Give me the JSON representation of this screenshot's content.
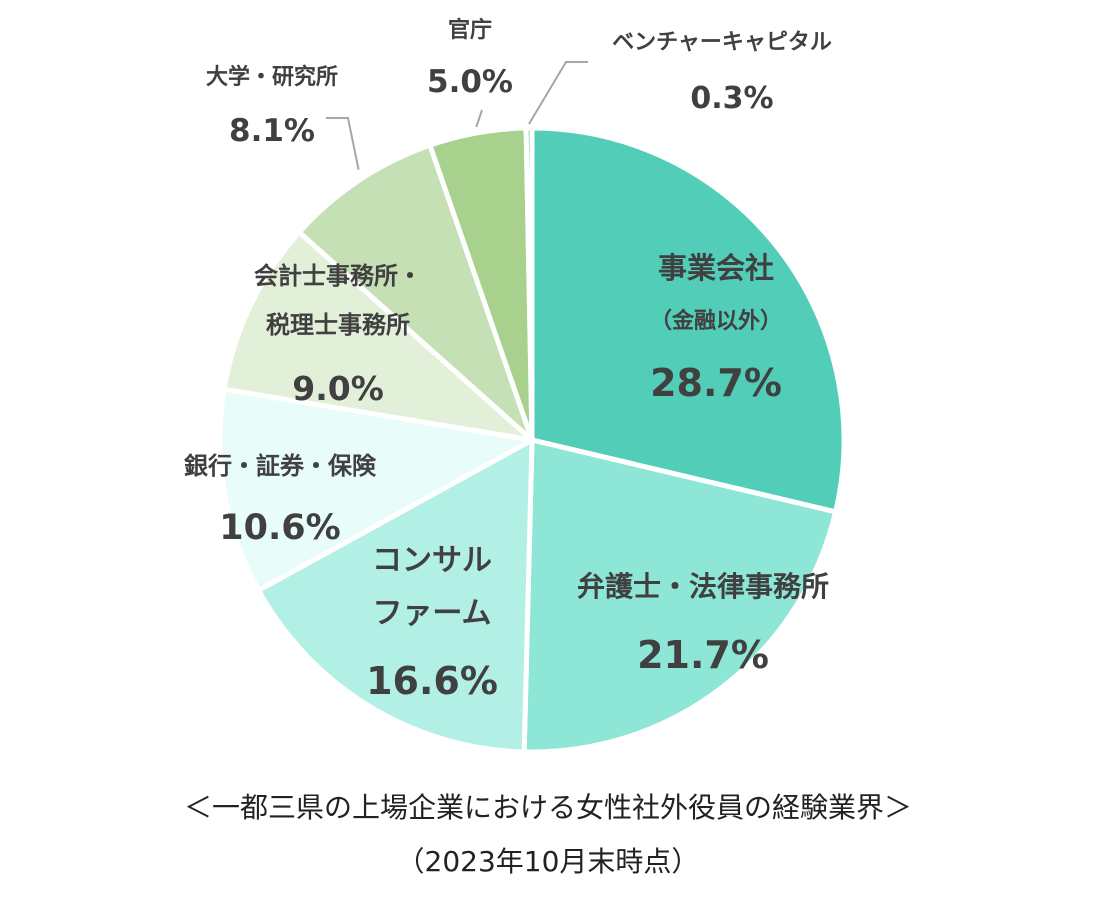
{
  "chart_data": {
    "type": "pie",
    "title": "＜一都三県の上場企業における女性社外役員の経験業界＞",
    "subtitle": "（2023年10月末時点）",
    "slices": [
      {
        "label": "事業会社",
        "sublabel": "（金融以外）",
        "value": 28.7,
        "value_text": "28.7%",
        "color": "#52cdb8"
      },
      {
        "label": "弁護士・法律事務所",
        "value": 21.7,
        "value_text": "21.7%",
        "color": "#8de6d6"
      },
      {
        "label": "コンサル",
        "sublabel": "ファーム",
        "value": 16.6,
        "value_text": "16.6%",
        "color": "#b2efe5"
      },
      {
        "label": "銀行・証券・保険",
        "value": 10.6,
        "value_text": "10.6%",
        "color": "#e8fcf9"
      },
      {
        "label": "会計士事務所・",
        "sublabel": "税理士事務所",
        "value": 9.0,
        "value_text": "9.0%",
        "color": "#e2f0da"
      },
      {
        "label": "大学・研究所",
        "value": 8.1,
        "value_text": "8.1%",
        "color": "#c5e0b4"
      },
      {
        "label": "官庁",
        "value": 5.0,
        "value_text": "5.0%",
        "color": "#a8d18d"
      },
      {
        "label": "ベンチャーキャピタル",
        "value": 0.3,
        "value_text": "0.3%",
        "color": "#7bbf9e"
      }
    ],
    "start": "12 o'clock",
    "direction": "clockwise"
  }
}
